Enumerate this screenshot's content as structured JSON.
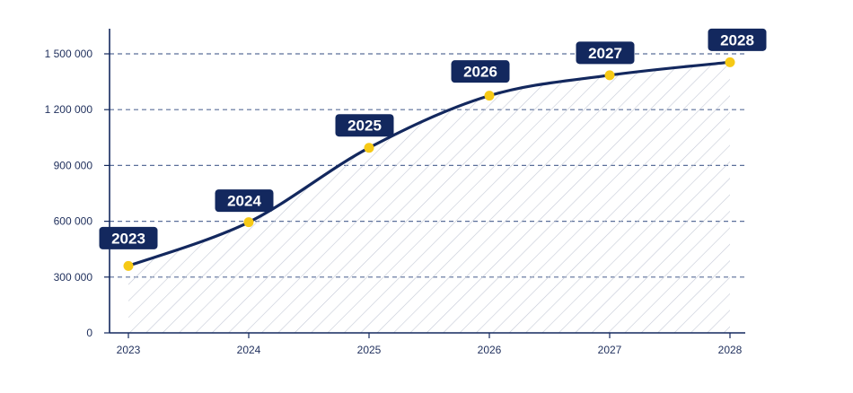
{
  "chart_data": {
    "type": "area",
    "title": "",
    "xlabel": "",
    "ylabel": "",
    "categories": [
      "2023",
      "2024",
      "2025",
      "2026",
      "2027",
      "2028"
    ],
    "series": [
      {
        "values": [
          360000,
          595000,
          995000,
          1275000,
          1385000,
          1455000
        ]
      }
    ],
    "ylim": [
      0,
      1500000
    ],
    "yticks": [
      0,
      300000,
      600000,
      900000,
      1200000,
      1500000
    ],
    "ytick_labels": [
      "0",
      "300 000",
      "600 000",
      "900 000",
      "1 200 000",
      "1 500 000"
    ],
    "point_labels": [
      "2023",
      "2024",
      "2025",
      "2026",
      "2027",
      "2028"
    ],
    "grid": true,
    "area_fill": "hatched",
    "colors": {
      "line": "#13285e",
      "marker": "#f6c915",
      "label_bg": "#13285e",
      "label_text": "#ffffff",
      "grid": "#5a6f99",
      "hatch": "#c4c9d6",
      "axis": "#13285e",
      "tick_text": "#1f2f5c"
    }
  }
}
